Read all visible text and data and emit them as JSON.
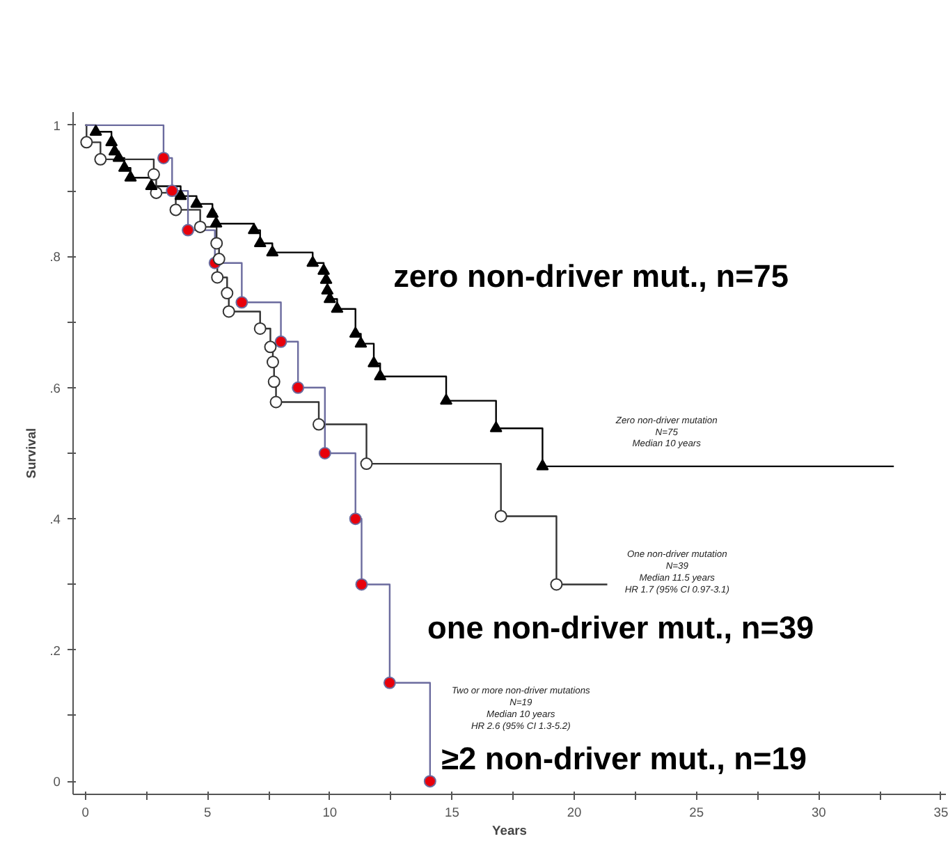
{
  "chart_data": {
    "type": "step",
    "xlabel": "Years",
    "ylabel": "Survival",
    "xlim": [
      -0.5,
      35.2
    ],
    "ylim": [
      -0.02,
      1.02
    ],
    "xticks": [
      0,
      {
        "value": 2.5,
        "label": null
      },
      5,
      {
        "value": 7.5,
        "label": null
      },
      10,
      {
        "value": 12.5,
        "label": null
      },
      15,
      {
        "value": 17.5,
        "label": null
      },
      20,
      {
        "value": 22.5,
        "label": null
      },
      25,
      {
        "value": 27.5,
        "label": null
      },
      30,
      {
        "value": 32.5,
        "label": null
      },
      35
    ],
    "yticks": [
      0,
      {
        "value": 0.1,
        "label": null
      },
      {
        "value": 0.2,
        "label": ".2"
      },
      {
        "value": 0.3,
        "label": null
      },
      {
        "value": 0.4,
        "label": ".4"
      },
      {
        "value": 0.5,
        "label": null
      },
      {
        "value": 0.6,
        "label": ".6"
      },
      {
        "value": 0.7,
        "label": null
      },
      {
        "value": 0.8,
        "label": ".8"
      },
      {
        "value": 0.9,
        "label": null
      },
      1
    ],
    "grid": false,
    "series": [
      {
        "name": "zero non-driver mut., n=75",
        "color": "#000000",
        "marker": "triangle",
        "x": [
          0,
          0.43,
          1.07,
          1.2,
          1.37,
          1.6,
          1.85,
          2.7,
          3.9,
          4.55,
          5.2,
          5.35,
          6.9,
          7.15,
          7.65,
          9.3,
          9.75,
          9.85,
          9.9,
          10.0,
          10.3,
          11.05,
          11.27,
          11.8,
          12.06,
          14.76,
          16.8,
          18.7,
          33.07
        ],
        "values": [
          1,
          0.99,
          0.974,
          0.96,
          0.95,
          0.935,
          0.92,
          0.907,
          0.892,
          0.88,
          0.865,
          0.85,
          0.84,
          0.82,
          0.806,
          0.79,
          0.778,
          0.764,
          0.748,
          0.735,
          0.72,
          0.682,
          0.667,
          0.637,
          0.617,
          0.58,
          0.538,
          0.48,
          0.48
        ],
        "colors": [
          null,
          "#000000",
          "#000000",
          "#000000",
          "#000000",
          "#000000",
          "#000000",
          "#000000",
          "#000000",
          "#000000",
          "#000000",
          "#000000",
          "#000000",
          "#000000",
          "#000000",
          "#000000",
          "#000000",
          "#000000",
          "#000000",
          "#000000",
          "#000000",
          "#000000",
          "#000000",
          "#000000",
          "#000000",
          "#000000",
          "#000000",
          "#000000",
          null
        ]
      },
      {
        "name": "one non-driver mut., n=39",
        "color": "#333333",
        "marker": "circle",
        "x": [
          0,
          0.05,
          0.62,
          2.8,
          2.9,
          3.7,
          4.7,
          5.37,
          5.47,
          5.4,
          5.8,
          5.87,
          7.15,
          7.57,
          7.67,
          7.72,
          7.8,
          9.55,
          11.5,
          17.0,
          19.27,
          21.35
        ],
        "values": [
          1,
          0.974,
          0.948,
          0.925,
          0.897,
          0.871,
          0.845,
          0.82,
          0.796,
          0.768,
          0.744,
          0.716,
          0.69,
          0.662,
          0.639,
          0.609,
          0.578,
          0.544,
          0.484,
          0.404,
          0.3,
          0.3
        ],
        "colors": [
          null,
          "#ffffff",
          "#ffffff",
          "#ffffff",
          "#ffffff",
          "#ffffff",
          "#ffffff",
          "#ffffff",
          "#ffffff",
          "#ffffff",
          "#ffffff",
          "#ffffff",
          "#ffffff",
          "#ffffff",
          "#ffffff",
          "#ffffff",
          "#ffffff",
          "#ffffff",
          "#ffffff",
          "#ffffff",
          "#ffffff",
          null
        ]
      },
      {
        "name": "≥2 non-driver mut., n=19",
        "color": "#6b6b9e",
        "marker": "circle",
        "x": [
          0,
          3.2,
          3.55,
          4.2,
          5.3,
          6.4,
          8.0,
          8.7,
          9.8,
          11.05,
          11.3,
          12.45,
          14.1
        ],
        "values": [
          1,
          0.95,
          0.9,
          0.84,
          0.79,
          0.73,
          0.67,
          0.6,
          0.5,
          0.4,
          0.3,
          0.15,
          0
        ],
        "colors": [
          null,
          "#e8000b",
          "#e8000b",
          "#e8000b",
          "#e8000b",
          "#e8000b",
          "#e8000b",
          "#e8000b",
          "#e8000b",
          "#e8000b",
          "#e8000b",
          "#e8000b",
          "#e8000b"
        ]
      }
    ],
    "annotations": [
      "Zero non-driver mutation\nN=75\nMedian 10 years",
      "One non-driver mutation\nN=39\nMedian 11.5 years\nHR 1.7 (95% CI 0.97-3.1)",
      "Two or more non-driver mutations\nN=19\nMedian 10 years\nHR 2.6 (95% CI 1.3-5.2)"
    ]
  }
}
